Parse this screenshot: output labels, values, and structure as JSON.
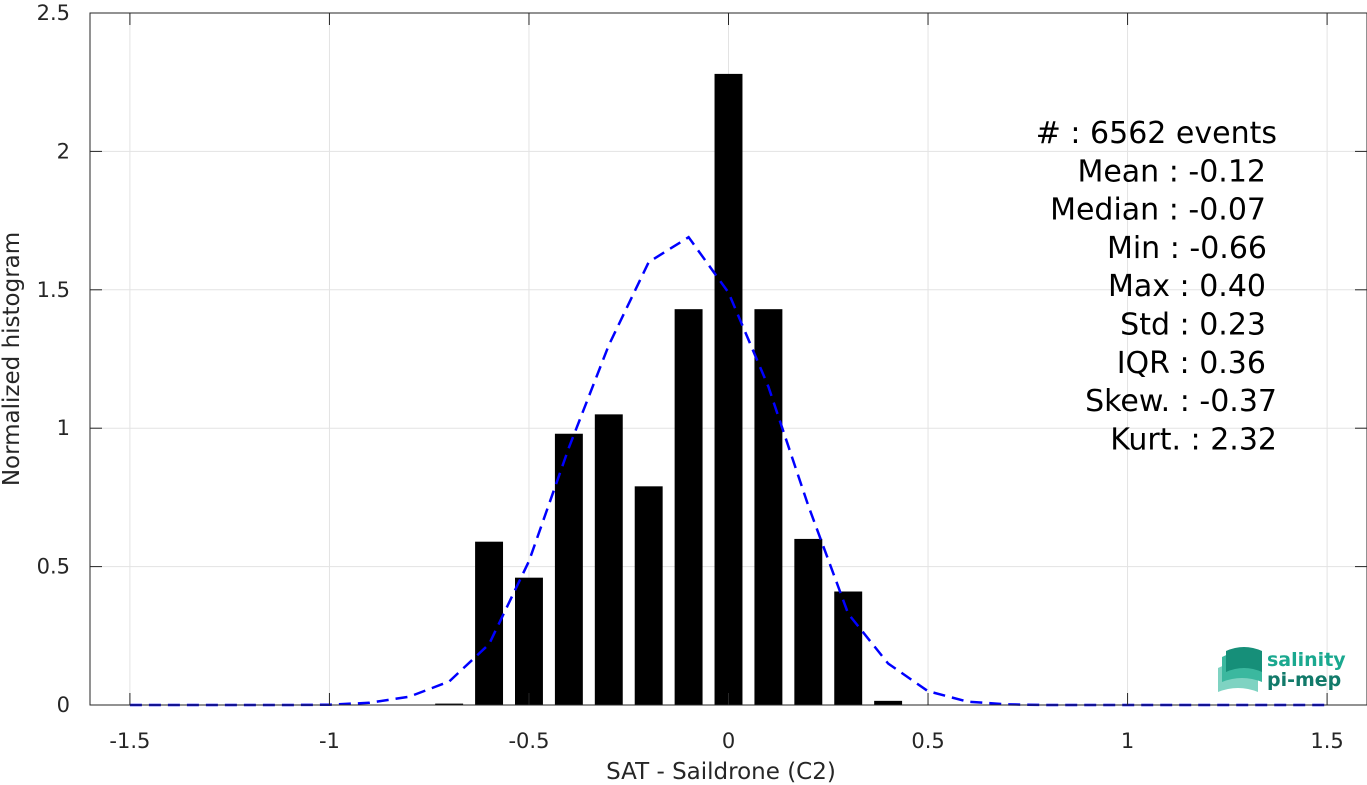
{
  "chart_data": {
    "type": "bar",
    "xlabel": "SAT - Saildrone (C2)",
    "ylabel": "Normalized histogram",
    "xlim": [
      -1.6,
      1.6
    ],
    "ylim": [
      0,
      2.5
    ],
    "xticks": [
      -1.5,
      -1,
      -0.5,
      0,
      0.5,
      1,
      1.5
    ],
    "xtick_labels": [
      "-1.5",
      "-1",
      "-0.5",
      "0",
      "0.5",
      "1",
      "1.5"
    ],
    "yticks": [
      0,
      0.5,
      1,
      1.5,
      2,
      2.5
    ],
    "ytick_labels": [
      "0",
      "0.5",
      "1",
      "1.5",
      "2",
      "2.5"
    ],
    "grid": true,
    "bar_width": 0.07,
    "bar_color": "#000000",
    "bars": {
      "x": [
        -0.7,
        -0.6,
        -0.5,
        -0.4,
        -0.3,
        -0.2,
        -0.1,
        0.0,
        0.1,
        0.2,
        0.3,
        0.4
      ],
      "values": [
        0.005,
        0.59,
        0.46,
        0.98,
        1.05,
        0.79,
        1.43,
        2.28,
        1.43,
        0.6,
        0.41,
        0.015
      ]
    },
    "fit_curve": {
      "style": "dashed",
      "color": "#0000ff",
      "x": [
        -1.5,
        -1.4,
        -1.3,
        -1.2,
        -1.1,
        -1.0,
        -0.9,
        -0.8,
        -0.7,
        -0.6,
        -0.5,
        -0.4,
        -0.3,
        -0.2,
        -0.1,
        0.0,
        0.1,
        0.2,
        0.3,
        0.4,
        0.5,
        0.6,
        0.7,
        0.8,
        0.9,
        1.0,
        1.1,
        1.2,
        1.3,
        1.4,
        1.5
      ],
      "y": [
        0,
        0,
        0,
        0,
        0,
        0.001,
        0.008,
        0.03,
        0.085,
        0.22,
        0.52,
        0.93,
        1.3,
        1.6,
        1.69,
        1.49,
        1.15,
        0.72,
        0.33,
        0.15,
        0.05,
        0.012,
        0.002,
        0,
        0,
        0,
        0,
        0,
        0,
        0,
        0
      ]
    },
    "annotations": [
      "#  : 6562 events",
      "Mean : -0.12",
      "Median : -0.07",
      "Min : -0.66",
      "Max : 0.40",
      "Std : 0.23",
      "IQR : 0.36",
      "Skew. : -0.37",
      "Kurt. : 2.32"
    ]
  },
  "logo": {
    "line1": "salinity",
    "line2": "pi-mep",
    "color1": "#1aa88f",
    "color2": "#127a6a"
  }
}
